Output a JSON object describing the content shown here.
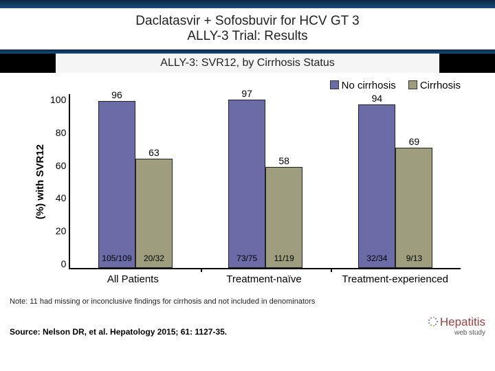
{
  "title": {
    "line1": "Daclatasvir + Sofosbuvir for HCV GT 3",
    "line2": "ALLY-3 Trial: Results"
  },
  "subtitle": "ALLY-3: SVR12, by Cirrhosis Status",
  "legend": {
    "items": [
      {
        "label": "No cirrhosis",
        "color": "#6b6ba8"
      },
      {
        "label": "Cirrhosis",
        "color": "#9e9e7e"
      }
    ]
  },
  "chart": {
    "type": "bar",
    "ylabel": "(%) with SVR12",
    "ylim": [
      0,
      100
    ],
    "ytick_step": 20,
    "yticks": [
      "100",
      "80",
      "60",
      "40",
      "20",
      "0"
    ],
    "bar_border": "#222222",
    "background_color": "#ffffff",
    "colors": {
      "no_cirrhosis": "#6b6ba8",
      "cirrhosis": "#9e9e7e"
    },
    "groups": [
      {
        "label": "All Patients",
        "bars": [
          {
            "series": "no_cirrhosis",
            "value": 96,
            "fraction": "105/109"
          },
          {
            "series": "cirrhosis",
            "value": 63,
            "fraction": "20/32"
          }
        ]
      },
      {
        "label": "Treatment-naïve",
        "bars": [
          {
            "series": "no_cirrhosis",
            "value": 97,
            "fraction": "73/75"
          },
          {
            "series": "cirrhosis",
            "value": 58,
            "fraction": "11/19"
          }
        ]
      },
      {
        "label": "Treatment-experienced",
        "bars": [
          {
            "series": "no_cirrhosis",
            "value": 94,
            "fraction": "32/34"
          },
          {
            "series": "cirrhosis",
            "value": 69,
            "fraction": "9/13"
          }
        ]
      }
    ]
  },
  "note": "Note: 11 had missing or inconclusive findings for cirrhosis and not included in denominators",
  "source": "Source: Nelson DR, et al. Hepatology 2015; 61: 1127-35.",
  "logo": {
    "name": "Hepatitis",
    "sub": "web study"
  }
}
